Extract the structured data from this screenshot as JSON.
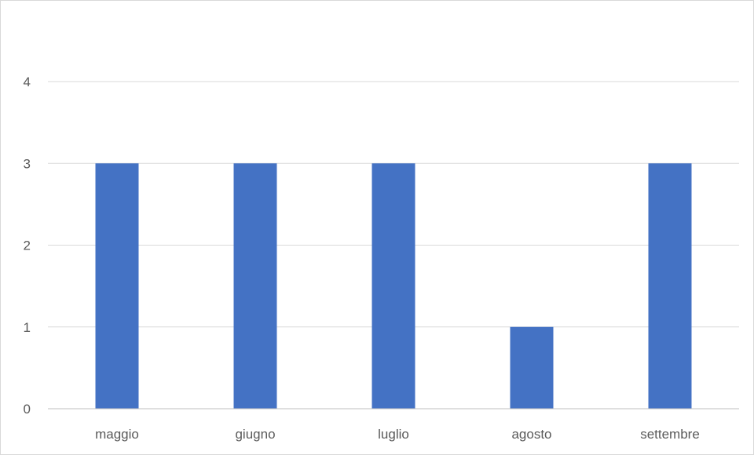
{
  "chart_data": {
    "type": "bar",
    "title": "",
    "xlabel": "",
    "ylabel": "",
    "categories": [
      "maggio",
      "giugno",
      "luglio",
      "agosto",
      "settembre"
    ],
    "values": [
      3,
      3,
      3,
      1,
      3
    ],
    "ylim": [
      0,
      4
    ],
    "yticks": [
      0,
      1,
      2,
      3,
      4
    ],
    "grid": true,
    "legend": "none",
    "colors": {
      "bar": "#4472c4",
      "grid": "#d9d9d9",
      "axis": "#bfbfbf",
      "tick_text": "#595959"
    }
  }
}
